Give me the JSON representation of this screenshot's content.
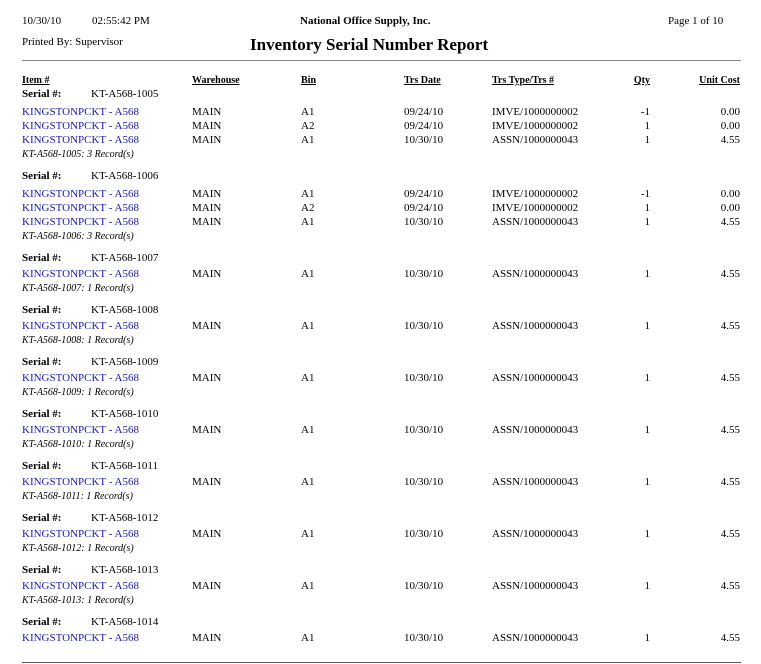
{
  "header": {
    "date": "10/30/10",
    "time": "02:55:42 PM",
    "company": "National Office Supply, Inc.",
    "page": "Page 1 of 10",
    "printed_by": "Printed By: Supervisor",
    "title": "Inventory Serial Number Report"
  },
  "columns": [
    "Item #",
    "Warehouse",
    "Bin",
    "Trs Date",
    "Trs Type/Trs #",
    "Qty",
    "Unit Cost"
  ],
  "serial_label": "Serial #:",
  "groups": [
    {
      "serial": "KT-A568-1005",
      "rows": [
        [
          "KINGSTONPCKT - A568",
          "MAIN",
          "A1",
          "09/24/10",
          "IMVE/1000000002",
          "-1",
          "0.00"
        ],
        [
          "KINGSTONPCKT - A568",
          "MAIN",
          "A2",
          "09/24/10",
          "IMVE/1000000002",
          "1",
          "0.00"
        ],
        [
          "KINGSTONPCKT - A568",
          "MAIN",
          "A1",
          "10/30/10",
          "ASSN/1000000043",
          "1",
          "4.55"
        ]
      ],
      "summary": "KT-A568-1005: 3 Record(s)"
    },
    {
      "serial": "KT-A568-1006",
      "rows": [
        [
          "KINGSTONPCKT - A568",
          "MAIN",
          "A1",
          "09/24/10",
          "IMVE/1000000002",
          "-1",
          "0.00"
        ],
        [
          "KINGSTONPCKT - A568",
          "MAIN",
          "A2",
          "09/24/10",
          "IMVE/1000000002",
          "1",
          "0.00"
        ],
        [
          "KINGSTONPCKT - A568",
          "MAIN",
          "A1",
          "10/30/10",
          "ASSN/1000000043",
          "1",
          "4.55"
        ]
      ],
      "summary": "KT-A568-1006: 3 Record(s)"
    },
    {
      "serial": "KT-A568-1007",
      "rows": [
        [
          "KINGSTONPCKT - A568",
          "MAIN",
          "A1",
          "10/30/10",
          "ASSN/1000000043",
          "1",
          "4.55"
        ]
      ],
      "summary": "KT-A568-1007: 1 Record(s)"
    },
    {
      "serial": "KT-A568-1008",
      "rows": [
        [
          "KINGSTONPCKT - A568",
          "MAIN",
          "A1",
          "10/30/10",
          "ASSN/1000000043",
          "1",
          "4.55"
        ]
      ],
      "summary": "KT-A568-1008: 1 Record(s)"
    },
    {
      "serial": "KT-A568-1009",
      "rows": [
        [
          "KINGSTONPCKT - A568",
          "MAIN",
          "A1",
          "10/30/10",
          "ASSN/1000000043",
          "1",
          "4.55"
        ]
      ],
      "summary": "KT-A568-1009: 1 Record(s)"
    },
    {
      "serial": "KT-A568-1010",
      "rows": [
        [
          "KINGSTONPCKT - A568",
          "MAIN",
          "A1",
          "10/30/10",
          "ASSN/1000000043",
          "1",
          "4.55"
        ]
      ],
      "summary": "KT-A568-1010: 1 Record(s)"
    },
    {
      "serial": "KT-A568-1011",
      "rows": [
        [
          "KINGSTONPCKT - A568",
          "MAIN",
          "A1",
          "10/30/10",
          "ASSN/1000000043",
          "1",
          "4.55"
        ]
      ],
      "summary": "KT-A568-1011: 1 Record(s)"
    },
    {
      "serial": "KT-A568-1012",
      "rows": [
        [
          "KINGSTONPCKT - A568",
          "MAIN",
          "A1",
          "10/30/10",
          "ASSN/1000000043",
          "1",
          "4.55"
        ]
      ],
      "summary": "KT-A568-1012: 1 Record(s)"
    },
    {
      "serial": "KT-A568-1013",
      "rows": [
        [
          "KINGSTONPCKT - A568",
          "MAIN",
          "A1",
          "10/30/10",
          "ASSN/1000000043",
          "1",
          "4.55"
        ]
      ],
      "summary": "KT-A568-1013: 1 Record(s)"
    },
    {
      "serial": "KT-A568-1014",
      "rows": [
        [
          "KINGSTONPCKT - A568",
          "MAIN",
          "A1",
          "10/30/10",
          "ASSN/1000000043",
          "1",
          "4.55"
        ]
      ]
    }
  ]
}
